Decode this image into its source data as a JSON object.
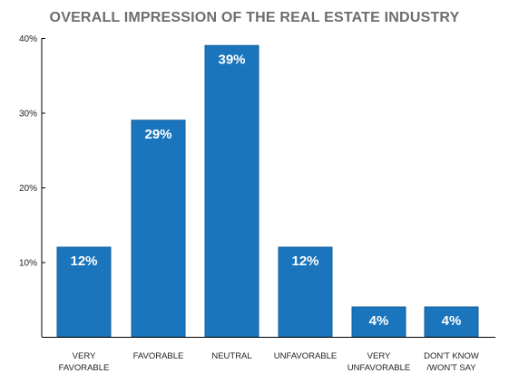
{
  "chart_data": {
    "type": "bar",
    "title": "OVERALL IMPRESSION OF THE REAL ESTATE INDUSTRY",
    "categories": [
      [
        "VERY",
        "FAVORABLE"
      ],
      [
        "FAVORABLE"
      ],
      [
        "NEUTRAL"
      ],
      [
        "UNFAVORABLE"
      ],
      [
        "VERY",
        "UNFAVORABLE"
      ],
      [
        "DON'T KNOW",
        "/WON'T SAY"
      ]
    ],
    "values": [
      12,
      29,
      39,
      12,
      4,
      4
    ],
    "data_labels": [
      "12%",
      "29%",
      "39%",
      "12%",
      "4%",
      "4%"
    ],
    "yticks": [
      10,
      20,
      30,
      40
    ],
    "ytick_labels": [
      "10%",
      "20%",
      "30%",
      "40%"
    ],
    "ylim": [
      0,
      40
    ],
    "xlabel": "",
    "ylabel": "",
    "grid": false,
    "legend": "none",
    "colors": {
      "bar": "#1a75bc",
      "bar_edge": "#135f9b",
      "axis": "#000000",
      "title": "#6d6d6d",
      "data_label": "#ffffff"
    }
  }
}
